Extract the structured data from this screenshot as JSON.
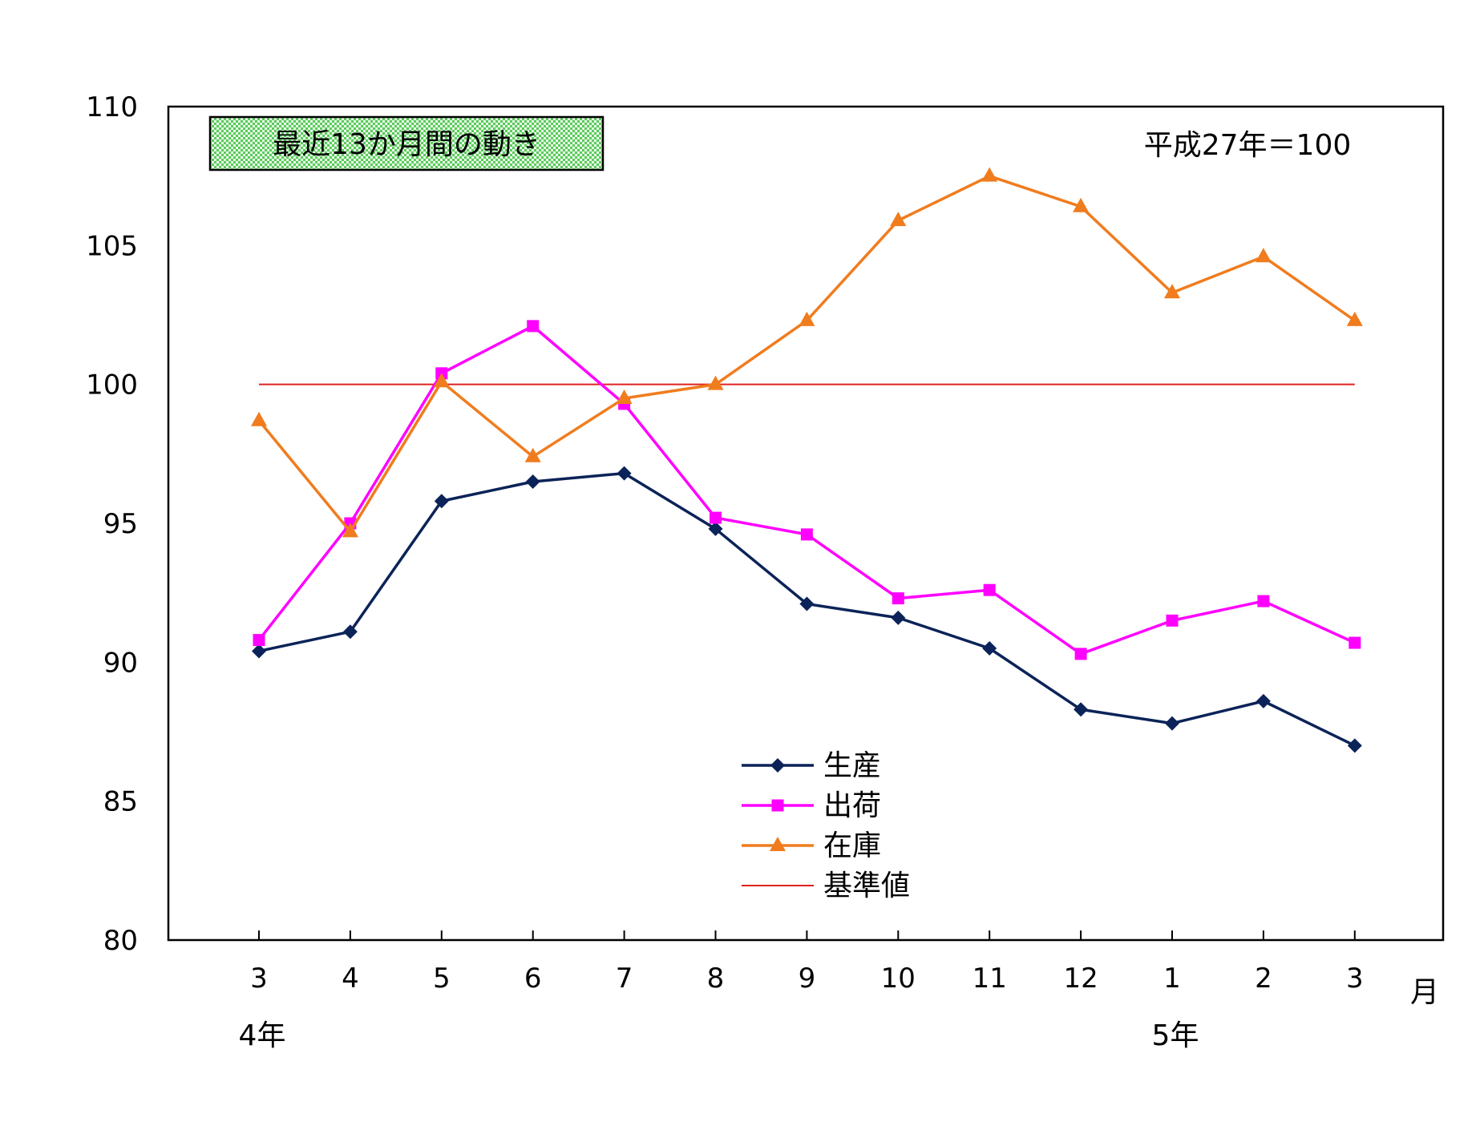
{
  "chart_data": {
    "type": "line",
    "title_box": "最近13か月間の動き",
    "base_note": "平成27年＝100",
    "x_unit_label": "月",
    "categories": [
      "3",
      "4",
      "5",
      "6",
      "7",
      "8",
      "9",
      "10",
      "11",
      "12",
      "1",
      "2",
      "3"
    ],
    "year_labels": [
      {
        "label": "4年",
        "category_index": 0
      },
      {
        "label": "5年",
        "category_index": 10
      }
    ],
    "ylim": [
      80,
      110
    ],
    "yticks": [
      80,
      85,
      90,
      95,
      100,
      105,
      110
    ],
    "series": [
      {
        "name": "生産",
        "color": "#0b2358",
        "marker": "diamond",
        "values": [
          90.4,
          91.1,
          95.8,
          96.5,
          96.8,
          94.8,
          92.1,
          91.6,
          90.5,
          88.3,
          87.8,
          88.6,
          87.0
        ]
      },
      {
        "name": "出荷",
        "color": "#ff00ff",
        "marker": "square",
        "values": [
          90.8,
          95.0,
          100.4,
          102.1,
          99.3,
          95.2,
          94.6,
          92.3,
          92.6,
          90.3,
          91.5,
          92.2,
          90.7
        ]
      },
      {
        "name": "在庫",
        "color": "#f07c1e",
        "marker": "triangle",
        "values": [
          98.7,
          94.7,
          100.1,
          97.4,
          99.5,
          100.0,
          102.3,
          105.9,
          107.5,
          106.4,
          103.3,
          104.6,
          102.3
        ]
      },
      {
        "name": "基準値",
        "color": "#e02020",
        "marker": "none",
        "values": [
          100,
          100,
          100,
          100,
          100,
          100,
          100,
          100,
          100,
          100,
          100,
          100,
          100
        ]
      }
    ],
    "legend_position": "bottom-center",
    "grid": false
  }
}
